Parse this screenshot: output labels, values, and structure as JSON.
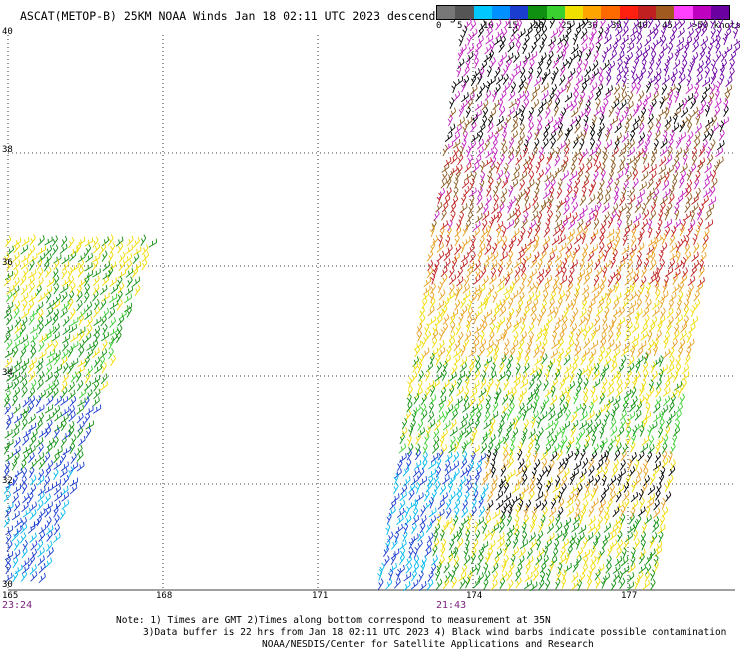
{
  "title": "ASCAT(METOP-B) 25KM NOAA Winds Jan 18 02:11 UTC 2023 descending",
  "legend": {
    "colors": [
      "#777777",
      "#555555",
      "#00c8ff",
      "#0090ff",
      "#1a3ccf",
      "#109010",
      "#3ad030",
      "#f0e000",
      "#ffa500",
      "#ff6a00",
      "#ff2010",
      "#c02020",
      "#a05a20",
      "#ff40ff",
      "#c000c0",
      "#6a00a0"
    ],
    "labels": [
      "0",
      "5",
      "10",
      "15",
      "20",
      "25",
      "30",
      "35",
      "40",
      "45",
      ">50 knots"
    ]
  },
  "map": {
    "lat_labels": [
      "40",
      "38",
      "36",
      "34",
      "32",
      "30"
    ],
    "lon_labels": [
      "165",
      "168",
      "171",
      "174",
      "177"
    ],
    "time_left": "23:24",
    "time_right": "21:43"
  },
  "notes": {
    "line1": "Note: 1) Times are GMT 2)Times along bottom correspond to measurement at 35N",
    "line2": "3)Data buffer is 22 hrs from Jan 18 02:11 UTC 2023 4) Black wind barbs indicate possible contamination",
    "line3": "NOAA/NESDIS/Center for Satellite Applications and Research"
  }
}
